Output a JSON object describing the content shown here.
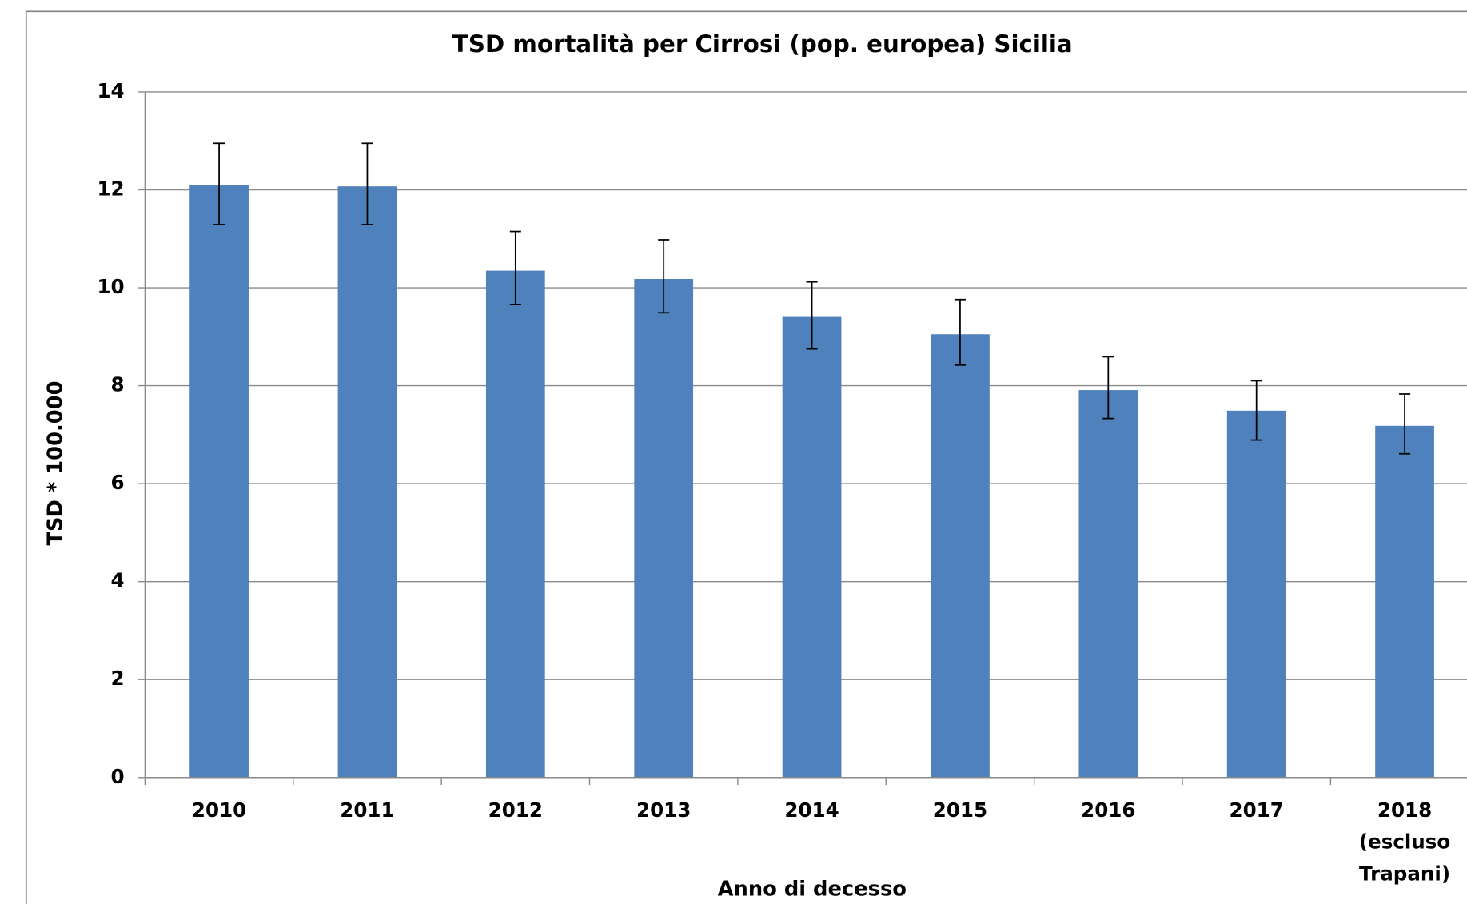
{
  "chart_data": {
    "type": "bar",
    "title": "TSD mortalità per Cirrosi  (pop. europea) Sicilia",
    "x_label": "Anno di decesso",
    "y_label": "TSD * 100.000",
    "categories": [
      "2010",
      "2011",
      "2012",
      "2013",
      "2014",
      "2015",
      "2016",
      "2017",
      "2018\n(escluso\nTrapani)"
    ],
    "values": [
      12.09,
      12.07,
      10.35,
      10.18,
      9.42,
      9.05,
      7.91,
      7.49,
      7.18
    ],
    "error_lower": [
      11.29,
      11.29,
      9.66,
      9.49,
      8.75,
      8.42,
      7.33,
      6.89,
      6.61
    ],
    "error_upper": [
      12.95,
      12.95,
      11.15,
      10.98,
      10.12,
      9.76,
      8.59,
      8.1,
      7.83
    ],
    "color": "#4f81bd",
    "ylim": [
      0,
      14
    ],
    "yticks": [
      0,
      2,
      4,
      6,
      8,
      10,
      12,
      14
    ],
    "grid": true
  }
}
